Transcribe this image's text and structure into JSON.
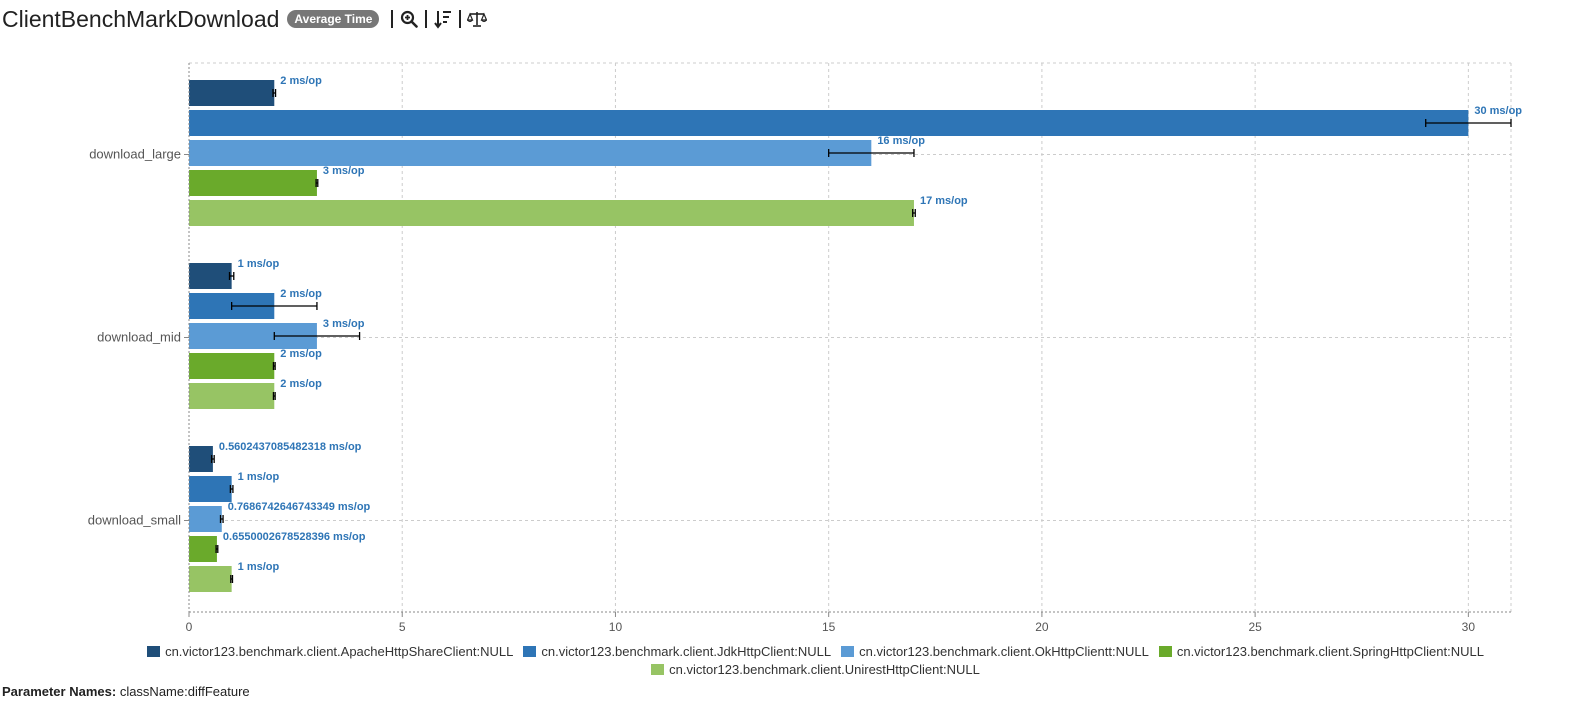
{
  "header": {
    "title": "ClientBenchMarkDownload",
    "mode_badge": "Average Time"
  },
  "toolbar": [
    "zoom-icon",
    "sort-descending-icon",
    "compare-scale-icon"
  ],
  "params": {
    "label": "Parameter Names:",
    "value": "className:diffFeature"
  },
  "colors": [
    "#1f4e79",
    "#2e75b6",
    "#5b9bd5",
    "#6aaa2b",
    "#97c464"
  ],
  "chart_data": {
    "type": "bar",
    "orientation": "horizontal",
    "categories": [
      "download_large",
      "download_mid",
      "download_small"
    ],
    "unit": "ms/op",
    "xlim": [
      0,
      31
    ],
    "xticks": [
      0,
      5,
      10,
      15,
      20,
      25,
      30
    ],
    "grid": true,
    "legend_position": "bottom",
    "series": [
      {
        "name": "cn.victor123.benchmark.client.ApacheHttpShareClient:NULL",
        "color": "#1f4e79",
        "values": [
          2,
          1,
          0.5602437085482318
        ],
        "labels": [
          "2 ms/op",
          "1 ms/op",
          "0.5602437085482318 ms/op"
        ],
        "errors": [
          0.03,
          0.05,
          0.03
        ]
      },
      {
        "name": "cn.victor123.benchmark.client.JdkHttpClient:NULL",
        "color": "#2e75b6",
        "values": [
          30,
          2,
          1
        ],
        "labels": [
          "30 ms/op",
          "2 ms/op",
          "1 ms/op"
        ],
        "errors": [
          1.0,
          1.0,
          0.03
        ]
      },
      {
        "name": "cn.victor123.benchmark.client.OkHttpClientt:NULL",
        "color": "#5b9bd5",
        "values": [
          16,
          3,
          0.7686742646743349
        ],
        "labels": [
          "16 ms/op",
          "3 ms/op",
          "0.7686742646743349 ms/op"
        ],
        "errors": [
          1.0,
          1.0,
          0.03
        ]
      },
      {
        "name": "cn.victor123.benchmark.client.SpringHttpClient:NULL",
        "color": "#6aaa2b",
        "values": [
          3,
          2,
          0.6550002678528396
        ],
        "labels": [
          "3 ms/op",
          "2 ms/op",
          "0.6550002678528396 ms/op"
        ],
        "errors": [
          0.02,
          0.02,
          0.02
        ]
      },
      {
        "name": "cn.victor123.benchmark.client.UnirestHttpClient:NULL",
        "color": "#97c464",
        "values": [
          17,
          2,
          1
        ],
        "labels": [
          "17 ms/op",
          "2 ms/op",
          "1 ms/op"
        ],
        "errors": [
          0.03,
          0.02,
          0.02
        ]
      }
    ]
  }
}
